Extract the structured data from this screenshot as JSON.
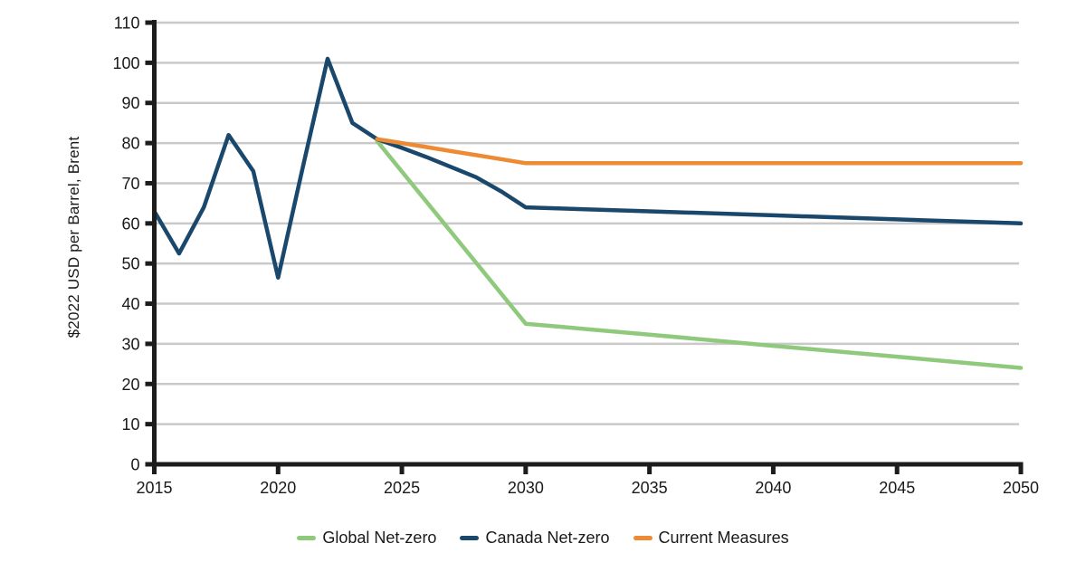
{
  "chart_data": {
    "type": "line",
    "ylabel": "$2022 USD per Barrel, Brent",
    "xlabel": "",
    "xlim": [
      2015,
      2050
    ],
    "ylim": [
      0,
      110
    ],
    "x_ticks": [
      2015,
      2020,
      2025,
      2030,
      2035,
      2040,
      2045,
      2050
    ],
    "y_ticks": [
      0,
      10,
      20,
      30,
      40,
      50,
      60,
      70,
      80,
      90,
      100,
      110
    ],
    "grid": true,
    "legend_position": "bottom",
    "colors": {
      "gridline": "#c9c9c9",
      "axis": "#1c1c1c",
      "text": "#1a1a1a"
    },
    "series": [
      {
        "name": "Global Net-zero",
        "id": "global-net-zero",
        "color": "#8fc97c",
        "points": [
          [
            2024,
            80.5
          ],
          [
            2030,
            35
          ],
          [
            2035,
            32.3
          ],
          [
            2040,
            29.5
          ],
          [
            2045,
            26.8
          ],
          [
            2050,
            24
          ]
        ]
      },
      {
        "name": "Canada Net-zero",
        "id": "canada-net-zero",
        "color": "#1a486c",
        "points": [
          [
            2015,
            63
          ],
          [
            2016,
            52.5
          ],
          [
            2017,
            64
          ],
          [
            2018,
            82
          ],
          [
            2019,
            73
          ],
          [
            2020,
            46.5
          ],
          [
            2021,
            74
          ],
          [
            2022,
            101
          ],
          [
            2023,
            85
          ],
          [
            2024,
            81
          ],
          [
            2025,
            78.8
          ],
          [
            2026,
            76.5
          ],
          [
            2027,
            74
          ],
          [
            2028,
            71.5
          ],
          [
            2029,
            68
          ],
          [
            2030,
            64
          ],
          [
            2035,
            63
          ],
          [
            2040,
            62
          ],
          [
            2045,
            61
          ],
          [
            2050,
            60
          ]
        ]
      },
      {
        "name": "Current Measures",
        "id": "current-measures",
        "color": "#ed8a33",
        "points": [
          [
            2024,
            81
          ],
          [
            2025,
            80
          ],
          [
            2026,
            79
          ],
          [
            2027,
            78
          ],
          [
            2028,
            77
          ],
          [
            2029,
            76
          ],
          [
            2030,
            75
          ],
          [
            2035,
            75
          ],
          [
            2040,
            75
          ],
          [
            2045,
            75
          ],
          [
            2050,
            75
          ]
        ]
      }
    ]
  }
}
